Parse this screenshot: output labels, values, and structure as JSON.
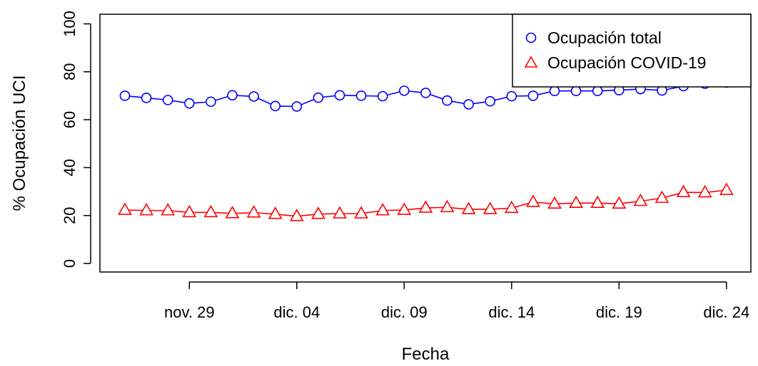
{
  "chart_data": {
    "type": "line",
    "title": "",
    "xlabel": "Fecha",
    "ylabel": "% Ocupación UCI",
    "ylim": [
      0,
      100
    ],
    "yticks": [
      "0",
      "20",
      "40",
      "60",
      "80",
      "100"
    ],
    "xticks": [
      {
        "date": "2020-11-29",
        "label": "nov. 29"
      },
      {
        "date": "2020-12-04",
        "label": "dic. 04"
      },
      {
        "date": "2020-12-09",
        "label": "dic. 09"
      },
      {
        "date": "2020-12-14",
        "label": "dic. 14"
      },
      {
        "date": "2020-12-19",
        "label": "dic. 19"
      },
      {
        "date": "2020-12-24",
        "label": "dic. 24"
      }
    ],
    "x": [
      "2020-11-26",
      "2020-11-27",
      "2020-11-28",
      "2020-11-29",
      "2020-11-30",
      "2020-12-01",
      "2020-12-02",
      "2020-12-03",
      "2020-12-04",
      "2020-12-05",
      "2020-12-06",
      "2020-12-07",
      "2020-12-08",
      "2020-12-09",
      "2020-12-10",
      "2020-12-11",
      "2020-12-12",
      "2020-12-13",
      "2020-12-14",
      "2020-12-15",
      "2020-12-16",
      "2020-12-17",
      "2020-12-18",
      "2020-12-19",
      "2020-12-20",
      "2020-12-21",
      "2020-12-22",
      "2020-12-23",
      "2020-12-24"
    ],
    "series": [
      {
        "name": "Ocupación total",
        "color": "#0000ff",
        "marker": "circle",
        "values": [
          70.0,
          69.1,
          68.2,
          66.8,
          67.5,
          70.2,
          69.7,
          65.7,
          65.5,
          69.2,
          70.2,
          70.0,
          69.8,
          72.1,
          71.2,
          68.0,
          66.4,
          67.7,
          69.8,
          70.0,
          72.0,
          72.0,
          72.0,
          72.3,
          72.8,
          72.2,
          74.0,
          75.0,
          75.5
        ]
      },
      {
        "name": "Ocupación COVID-19",
        "color": "#ff0000",
        "marker": "triangle",
        "values": [
          22.3,
          22.1,
          22.1,
          21.3,
          21.3,
          20.9,
          21.2,
          20.6,
          19.7,
          20.6,
          20.8,
          20.8,
          22.1,
          22.3,
          23.2,
          23.4,
          22.6,
          22.6,
          23.1,
          25.6,
          24.9,
          25.2,
          25.2,
          24.9,
          26.0,
          27.3,
          29.7,
          29.6,
          30.6
        ]
      }
    ],
    "legend": {
      "position": "top-right"
    },
    "grid": false
  }
}
